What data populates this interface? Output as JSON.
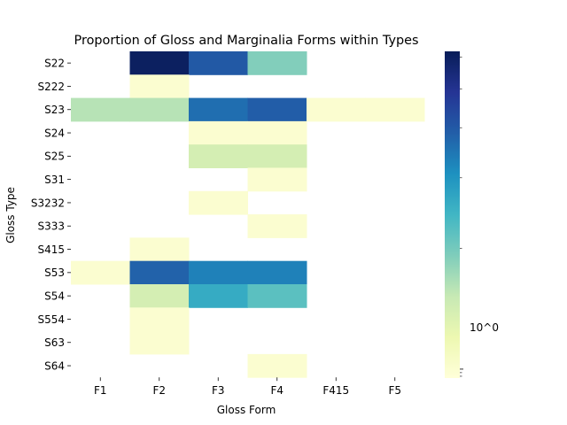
{
  "chart_data": {
    "type": "heatmap",
    "title": "Proportion of Gloss and Marginalia Forms within Types",
    "xlabel": "Gloss Form",
    "ylabel": "Gloss Type",
    "x_categories": [
      "F1",
      "F2",
      "F3",
      "F4",
      "F415",
      "F5"
    ],
    "y_categories": [
      "S22",
      "S222",
      "S23",
      "S24",
      "S25",
      "S31",
      "S3232",
      "S333",
      "S415",
      "S53",
      "S54",
      "S554",
      "S63",
      "S64"
    ],
    "values": [
      [
        null,
        6.0,
        4.0,
        1.9,
        null,
        null
      ],
      [
        null,
        1.0,
        null,
        null,
        null,
        null
      ],
      [
        1.6,
        1.6,
        3.6,
        3.9,
        1.0,
        1.0
      ],
      [
        null,
        null,
        1.0,
        1.0,
        null,
        null
      ],
      [
        null,
        null,
        1.4,
        1.4,
        null,
        null
      ],
      [
        null,
        null,
        null,
        1.0,
        null,
        null
      ],
      [
        null,
        null,
        1.0,
        null,
        null,
        null
      ],
      [
        null,
        null,
        null,
        1.0,
        null,
        null
      ],
      [
        null,
        1.0,
        null,
        null,
        null,
        null
      ],
      [
        1.0,
        3.8,
        3.3,
        3.3,
        null,
        null
      ],
      [
        null,
        1.4,
        2.6,
        2.2,
        null,
        null
      ],
      [
        null,
        1.0,
        null,
        null,
        null,
        null
      ],
      [
        null,
        1.0,
        null,
        null,
        null,
        null
      ],
      [
        null,
        null,
        null,
        1.0,
        null,
        null
      ]
    ],
    "colorscale": "YlGnBu",
    "colorbar": {
      "scale": "log",
      "labeled_tick": "10^0",
      "range": [
        0.95,
        6.2
      ]
    },
    "colors": {
      "low": "#ffffd9",
      "high": "#081d58"
    }
  }
}
